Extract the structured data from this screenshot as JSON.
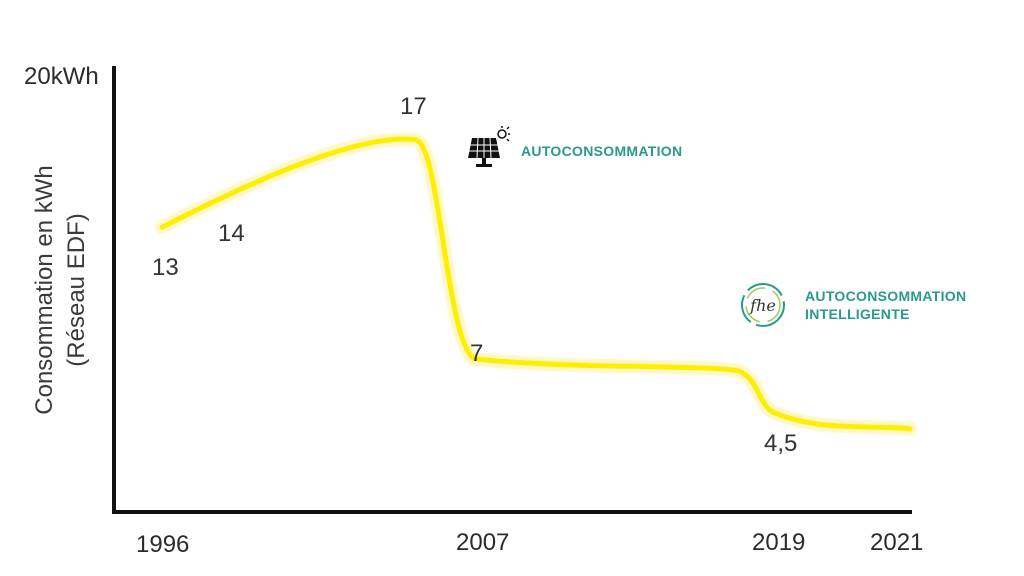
{
  "chart_data": {
    "type": "line",
    "ylabel_lines": [
      "Consommation en kWh",
      "(Réseau EDF)"
    ],
    "ymax_label": "20kWh",
    "ylim": [
      0,
      20
    ],
    "x_ticks": [
      "1996",
      "2007",
      "2019",
      "2021"
    ],
    "points": [
      {
        "x": 1996,
        "y": 13,
        "label": "13"
      },
      {
        "x": 1998,
        "y": 14,
        "label": "14"
      },
      {
        "x": 2006,
        "y": 17,
        "label": "17"
      },
      {
        "x": 2007,
        "y": 7,
        "label": "7"
      },
      {
        "x": 2019,
        "y": 4.5,
        "label": "4,5"
      },
      {
        "x": 2021,
        "y": 3.8,
        "label": ""
      }
    ],
    "annotations": [
      {
        "icon": "solar-panel-icon",
        "lines": [
          "AUTOCONSOMMATION"
        ]
      },
      {
        "icon": "fhe-logo-icon",
        "logo_text": "fhe",
        "lines": [
          "AUTOCONSOMMATION",
          "INTELLIGENTE"
        ]
      }
    ],
    "colors": {
      "line": "#ffee00",
      "annotation": "#2a9a88",
      "axis": "#111111"
    }
  }
}
